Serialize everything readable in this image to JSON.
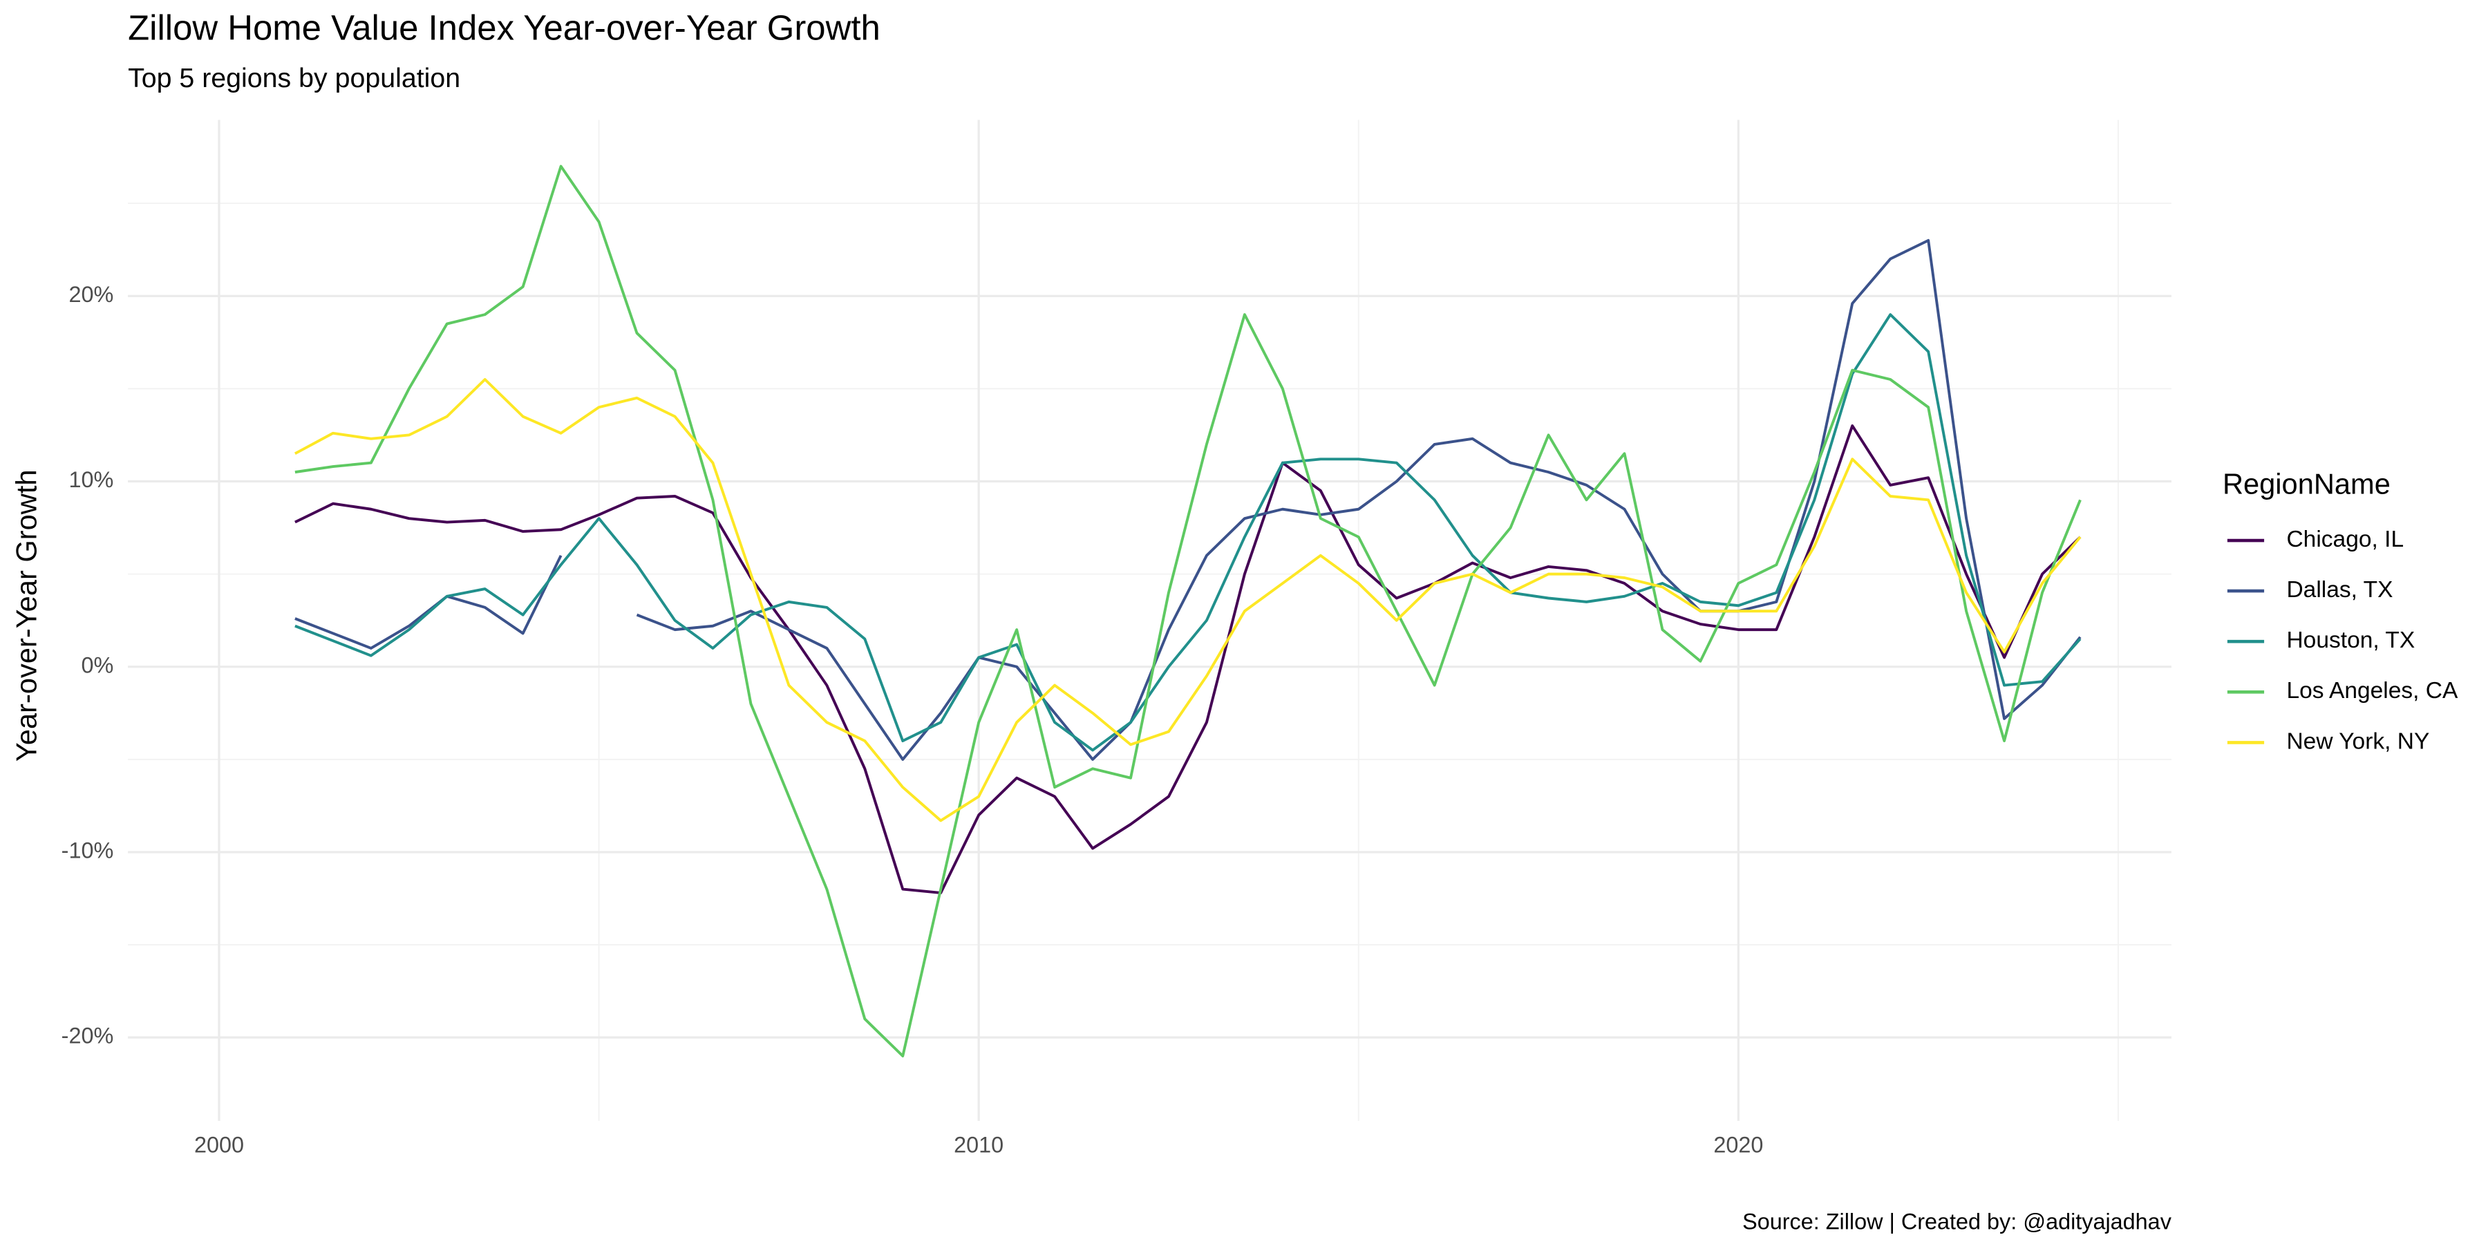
{
  "chart_data": {
    "type": "line",
    "title": "Zillow Home Value Index Year-over-Year Growth",
    "subtitle": "Top 5 regions by population",
    "y_label": "Year-over-Year Growth",
    "caption": "Source: Zillow | Created by: @adityajadhav",
    "legend_title": "RegionName",
    "legend_position": "right",
    "grid": true,
    "xlim": [
      1998.8,
      2025.7
    ],
    "xticks": [
      2000,
      2010,
      2020
    ],
    "ylim": [
      -24.5,
      29.5
    ],
    "yticks": [
      {
        "value": -20,
        "label": "-20%"
      },
      {
        "value": -10,
        "label": "-10%"
      },
      {
        "value": 0,
        "label": "0%"
      },
      {
        "value": 10,
        "label": "10%"
      },
      {
        "value": 20,
        "label": "20%"
      }
    ],
    "x": [
      2001,
      2001.5,
      2002,
      2002.5,
      2003,
      2003.5,
      2004,
      2004.5,
      2005,
      2005.5,
      2006,
      2006.5,
      2007,
      2007.5,
      2008,
      2008.5,
      2009,
      2009.5,
      2010,
      2010.5,
      2011,
      2011.5,
      2012,
      2012.5,
      2013,
      2013.5,
      2014,
      2014.5,
      2015,
      2015.5,
      2016,
      2016.5,
      2017,
      2017.5,
      2018,
      2018.5,
      2019,
      2019.5,
      2020,
      2020.5,
      2021,
      2021.5,
      2022,
      2022.5,
      2023,
      2023.5,
      2024,
      2024.5
    ],
    "series": [
      {
        "name": "Chicago, IL",
        "color": "#440154",
        "values": [
          7.8,
          8.8,
          8.5,
          8.0,
          7.8,
          7.9,
          7.3,
          7.4,
          8.2,
          9.1,
          9.2,
          8.3,
          4.8,
          2.0,
          -1.0,
          -5.5,
          -12.0,
          -12.2,
          -8.0,
          -6.0,
          -7.0,
          -9.8,
          -8.5,
          -7.0,
          -3.0,
          5.0,
          11.0,
          9.5,
          5.5,
          3.7,
          4.5,
          5.6,
          4.8,
          5.4,
          5.2,
          4.5,
          3.0,
          2.3,
          2.0,
          2.0,
          7.0,
          13.0,
          9.8,
          10.2,
          5.0,
          0.5,
          5.0,
          7.0
        ]
      },
      {
        "name": "Dallas, TX",
        "color": "#3b528b",
        "values": [
          2.6,
          1.8,
          1.0,
          2.2,
          3.8,
          3.2,
          1.8,
          6.0,
          null,
          2.8,
          2.0,
          2.2,
          3.0,
          2.0,
          1.0,
          -2.0,
          -5.0,
          -2.5,
          0.5,
          0.0,
          -2.5,
          -5.0,
          -3.0,
          2.0,
          6.0,
          8.0,
          8.5,
          8.2,
          8.5,
          10.0,
          12.0,
          12.3,
          11.0,
          10.5,
          9.8,
          8.5,
          5.0,
          3.0,
          3.0,
          3.5,
          10.0,
          19.6,
          22.0,
          23.0,
          8.0,
          -2.8,
          -1.0,
          1.6
        ]
      },
      {
        "name": "Houston, TX",
        "color": "#21908c",
        "values": [
          2.2,
          1.4,
          0.6,
          2.0,
          3.8,
          4.2,
          2.8,
          5.5,
          8.0,
          5.5,
          2.5,
          1.0,
          2.8,
          3.5,
          3.2,
          1.5,
          -4.0,
          -3.0,
          0.5,
          1.2,
          -3.0,
          -4.5,
          -3.0,
          0.0,
          2.5,
          7.0,
          11.0,
          11.2,
          11.2,
          11.0,
          9.0,
          6.0,
          4.0,
          3.7,
          3.5,
          3.8,
          4.5,
          3.5,
          3.3,
          4.0,
          9.0,
          15.8,
          19.0,
          17.0,
          6.0,
          -1.0,
          -0.8,
          1.5
        ]
      },
      {
        "name": "Los Angeles, CA",
        "color": "#5ec962",
        "values": [
          10.5,
          10.8,
          11.0,
          15.0,
          18.5,
          19.0,
          20.5,
          27.0,
          24.0,
          18.0,
          16.0,
          9.0,
          -2.0,
          -7.0,
          -12.0,
          -19.0,
          -21.0,
          -12.0,
          -3.0,
          2.0,
          -6.5,
          -5.5,
          -6.0,
          4.0,
          12.0,
          19.0,
          15.0,
          8.0,
          7.0,
          3.0,
          -1.0,
          5.0,
          7.5,
          12.5,
          9.0,
          11.5,
          2.0,
          0.3,
          4.5,
          5.5,
          10.5,
          16.0,
          15.5,
          14.0,
          3.0,
          -4.0,
          4.0,
          9.0
        ]
      },
      {
        "name": "New York, NY",
        "color": "#fde725",
        "values": [
          11.5,
          12.6,
          12.3,
          12.5,
          13.5,
          15.5,
          13.5,
          12.6,
          14.0,
          14.5,
          13.5,
          11.0,
          5.0,
          -1.0,
          -3.0,
          -4.0,
          -6.5,
          -8.3,
          -7.0,
          -3.0,
          -1.0,
          -2.5,
          -4.2,
          -3.5,
          -0.5,
          3.0,
          4.5,
          6.0,
          4.5,
          2.5,
          4.5,
          5.0,
          4.0,
          5.0,
          5.0,
          4.8,
          4.3,
          3.0,
          3.0,
          3.0,
          6.5,
          11.2,
          9.2,
          9.0,
          4.0,
          0.8,
          4.5,
          7.0
        ]
      }
    ]
  }
}
